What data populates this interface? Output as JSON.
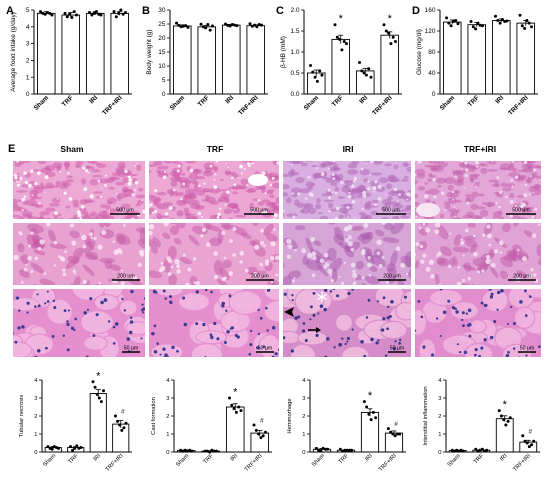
{
  "group_labels": [
    "Sham",
    "TRF",
    "IRI",
    "TRF+IRI"
  ],
  "panel_E": {
    "letter": "E",
    "columns": [
      "Sham",
      "TRF",
      "IRI",
      "TRF+IRI"
    ],
    "scale_bars": [
      "500 μm",
      "200 μm",
      "50 μm"
    ],
    "rows": [
      {
        "row": "low magnification",
        "tiles": [
          {
            "base": "#eda9d6",
            "tissue": "#cf62ad",
            "lumen": "#ffffff"
          },
          {
            "base": "#eca7d5",
            "tissue": "#cd5fab",
            "lumen": "#ffffff"
          },
          {
            "base": "#d9aee0",
            "tissue": "#b36bb8",
            "lumen": "#f3e4f4"
          },
          {
            "base": "#e4a8d8",
            "tissue": "#c565ae",
            "lumen": "#f6e6f3"
          }
        ]
      },
      {
        "row": "medium magnification",
        "tiles": [
          {
            "base": "#e8a2d2",
            "tissue": "#c45aa6",
            "lumen": "#fbe9f5"
          },
          {
            "base": "#e9a4d3",
            "tissue": "#c75caa",
            "lumen": "#fbe9f5"
          },
          {
            "base": "#d7a4d8",
            "tissue": "#a85aaa",
            "lumen": "#f3e3f3"
          },
          {
            "base": "#e1a2d5",
            "tissue": "#c05ea9",
            "lumen": "#f7e6f4"
          }
        ]
      },
      {
        "row": "high magnification",
        "tiles": [
          {
            "base": "#e58fcf",
            "tissue": "#f2b6e0",
            "lumen": "#fde9f5",
            "nucleus": "#3d3c94"
          },
          {
            "base": "#e58fcf",
            "tissue": "#f2b6e0",
            "lumen": "#fde9f5",
            "nucleus": "#3d3c94"
          },
          {
            "base": "#d58cc9",
            "tissue": "#f0b9df",
            "lumen": "#f6e3f3",
            "nucleus": "#35378a"
          },
          {
            "base": "#e08ccd",
            "tissue": "#f1b3df",
            "lumen": "#fbe8f4",
            "nucleus": "#3d3c94"
          }
        ]
      }
    ],
    "markers": [
      {
        "tile": "IRI-high",
        "type": "arrowhead",
        "color": "#000000"
      },
      {
        "tile": "IRI-high",
        "type": "arrow",
        "color": "#000000"
      },
      {
        "tile": "IRI-high",
        "type": "asterisk",
        "color": "#ffffff"
      }
    ]
  },
  "chart_data": [
    {
      "id": "A",
      "letter": "A",
      "type": "bar",
      "ylabel": "Average food intake (g/day)",
      "categories": [
        "Sham",
        "TRF",
        "IRI",
        "TRF+IRI"
      ],
      "values": [
        4.8,
        4.7,
        4.8,
        4.8
      ],
      "errors": [
        0.1,
        0.15,
        0.1,
        0.12
      ],
      "points": [
        [
          4.9,
          4.8,
          4.75,
          4.85,
          4.8,
          4.7
        ],
        [
          4.8,
          4.6,
          4.75,
          4.55,
          4.9,
          4.7
        ],
        [
          4.85,
          4.7,
          4.8,
          4.9,
          4.75,
          4.7
        ],
        [
          4.9,
          4.6,
          4.8,
          5.0,
          4.75,
          4.85
        ]
      ],
      "ylim": [
        0,
        5
      ],
      "yticks": [
        "0",
        "1",
        "2",
        "3",
        "4",
        "5"
      ],
      "stars": [
        "",
        "",
        "",
        ""
      ],
      "hashes": [
        "",
        "",
        "",
        ""
      ]
    },
    {
      "id": "B",
      "letter": "B",
      "type": "bar",
      "ylabel": "Body weight (g)",
      "categories": [
        "Sham",
        "TRF",
        "IRI",
        "TRF+IRI"
      ],
      "values": [
        24.3,
        24.0,
        24.6,
        24.4
      ],
      "errors": [
        0.4,
        0.5,
        0.3,
        0.3
      ],
      "points": [
        [
          25.3,
          24.5,
          24.0,
          24.2,
          24.4,
          23.8
        ],
        [
          24.9,
          24.0,
          23.6,
          24.8,
          22.8,
          24.3
        ],
        [
          25.0,
          24.5,
          24.3,
          24.8,
          24.6,
          24.4
        ],
        [
          25.1,
          24.2,
          24.6,
          24.0,
          24.8,
          24.6
        ]
      ],
      "ylim": [
        0,
        30
      ],
      "yticks": [
        "0",
        "5",
        "10",
        "15",
        "20",
        "25",
        "30"
      ],
      "stars": [
        "",
        "",
        "",
        ""
      ],
      "hashes": [
        "",
        "",
        "",
        ""
      ]
    },
    {
      "id": "C",
      "letter": "C",
      "type": "bar",
      "ylabel": "β-HB (mM)",
      "categories": [
        "Sham",
        "TRF",
        "IRI",
        "TRF+IRI"
      ],
      "values": [
        0.5,
        1.3,
        0.55,
        1.4
      ],
      "errors": [
        0.07,
        0.1,
        0.06,
        0.08
      ],
      "points": [
        [
          0.68,
          0.52,
          0.4,
          0.3,
          0.55,
          0.45
        ],
        [
          1.65,
          1.35,
          1.3,
          1.05,
          1.25,
          1.2
        ],
        [
          0.75,
          0.55,
          0.5,
          0.45,
          0.6,
          0.4
        ],
        [
          1.65,
          1.5,
          1.45,
          1.2,
          1.35,
          1.25
        ]
      ],
      "ylim": [
        0,
        2
      ],
      "yticks": [
        "0.0",
        "0.5",
        "1.0",
        "1.5",
        "2.0"
      ],
      "stars": [
        "",
        "*",
        "",
        "*"
      ],
      "hashes": [
        "",
        "",
        "",
        ""
      ]
    },
    {
      "id": "D",
      "letter": "D",
      "type": "bar",
      "ylabel": "Glucose (mg/dl)",
      "categories": [
        "Sham",
        "TRF",
        "IRI",
        "TRF+IRI"
      ],
      "values": [
        137,
        132,
        140,
        135
      ],
      "errors": [
        4,
        4,
        3,
        5
      ],
      "points": [
        [
          145,
          135,
          130,
          138,
          140,
          134
        ],
        [
          138,
          128,
          124,
          135,
          131,
          130
        ],
        [
          148,
          140,
          135,
          142,
          138,
          139
        ],
        [
          150,
          130,
          125,
          140,
          135,
          128
        ]
      ],
      "ylim": [
        0,
        160
      ],
      "yticks": [
        "0",
        "40",
        "80",
        "120",
        "160"
      ],
      "stars": [
        "",
        "",
        "",
        ""
      ],
      "hashes": [
        "",
        "",
        "",
        ""
      ]
    },
    {
      "id": "F1",
      "letter": "",
      "type": "bar",
      "ylabel": "Tubular necrosis",
      "categories": [
        "Sham",
        "TRF",
        "IRI",
        "TRF+IRI"
      ],
      "values": [
        0.25,
        0.25,
        3.25,
        1.55
      ],
      "errors": [
        0.05,
        0.05,
        0.22,
        0.2
      ],
      "points": [
        [
          0.3,
          0.2,
          0.15,
          0.3,
          0.25,
          0.2
        ],
        [
          0.3,
          0.1,
          0.2,
          0.35,
          0.2,
          0.25
        ],
        [
          3.9,
          3.6,
          3.2,
          3.0,
          2.8,
          3.4
        ],
        [
          2.0,
          1.7,
          1.5,
          1.2,
          1.35,
          1.6
        ]
      ],
      "ylim": [
        0,
        4
      ],
      "yticks": [
        "0",
        "1",
        "2",
        "3",
        "4"
      ],
      "stars": [
        "",
        "",
        "*",
        ""
      ],
      "hashes": [
        "",
        "",
        "",
        "#"
      ]
    },
    {
      "id": "F2",
      "letter": "",
      "type": "bar",
      "ylabel": "Cast formation",
      "categories": [
        "Sham",
        "TRF",
        "IRI",
        "TRF+IRI"
      ],
      "values": [
        0.08,
        0.05,
        2.5,
        1.05
      ],
      "errors": [
        0.03,
        0.02,
        0.18,
        0.15
      ],
      "points": [
        [
          0.1,
          0.05,
          0.1,
          0.05,
          0.1,
          0.05
        ],
        [
          0.05,
          0.05,
          0.0,
          0.1,
          0.05,
          0.05
        ],
        [
          3.0,
          2.6,
          2.4,
          2.2,
          2.5,
          2.3
        ],
        [
          1.5,
          1.2,
          1.0,
          0.8,
          0.9,
          1.1
        ]
      ],
      "ylim": [
        0,
        4
      ],
      "yticks": [
        "0",
        "1",
        "2",
        "3",
        "4"
      ],
      "stars": [
        "",
        "",
        "*",
        ""
      ],
      "hashes": [
        "",
        "",
        "",
        "#"
      ]
    },
    {
      "id": "F3",
      "letter": "",
      "type": "bar",
      "ylabel": "Hemmorhage",
      "categories": [
        "Sham",
        "TRF",
        "IRI",
        "TRF+IRI"
      ],
      "values": [
        0.15,
        0.1,
        2.2,
        1.05
      ],
      "errors": [
        0.05,
        0.04,
        0.2,
        0.12
      ],
      "points": [
        [
          0.2,
          0.1,
          0.05,
          0.2,
          0.15,
          0.15
        ],
        [
          0.15,
          0.05,
          0.1,
          0.1,
          0.1,
          0.1
        ],
        [
          2.8,
          2.5,
          2.1,
          1.8,
          2.2,
          1.9
        ],
        [
          1.3,
          1.1,
          1.0,
          0.9,
          1.0,
          1.0
        ]
      ],
      "ylim": [
        0,
        4
      ],
      "yticks": [
        "0",
        "1",
        "2",
        "3",
        "4"
      ],
      "stars": [
        "",
        "",
        "*",
        ""
      ],
      "hashes": [
        "",
        "",
        "",
        "#"
      ]
    },
    {
      "id": "F4",
      "letter": "",
      "type": "bar",
      "ylabel": "Interstitial inflammation",
      "categories": [
        "Sham",
        "TRF",
        "IRI",
        "TRF+IRI"
      ],
      "values": [
        0.08,
        0.1,
        1.85,
        0.55
      ],
      "errors": [
        0.03,
        0.05,
        0.16,
        0.1
      ],
      "points": [
        [
          0.1,
          0.05,
          0.1,
          0.05,
          0.1,
          0.05
        ],
        [
          0.15,
          0.05,
          0.1,
          0.15,
          0.05,
          0.1
        ],
        [
          2.3,
          2.0,
          1.8,
          1.5,
          1.7,
          1.9
        ],
        [
          0.9,
          0.6,
          0.5,
          0.3,
          0.4,
          0.6
        ]
      ],
      "ylim": [
        0,
        4
      ],
      "yticks": [
        "0",
        "1",
        "2",
        "3",
        "4"
      ],
      "stars": [
        "",
        "",
        "*",
        ""
      ],
      "hashes": [
        "",
        "",
        "",
        "#"
      ]
    }
  ]
}
